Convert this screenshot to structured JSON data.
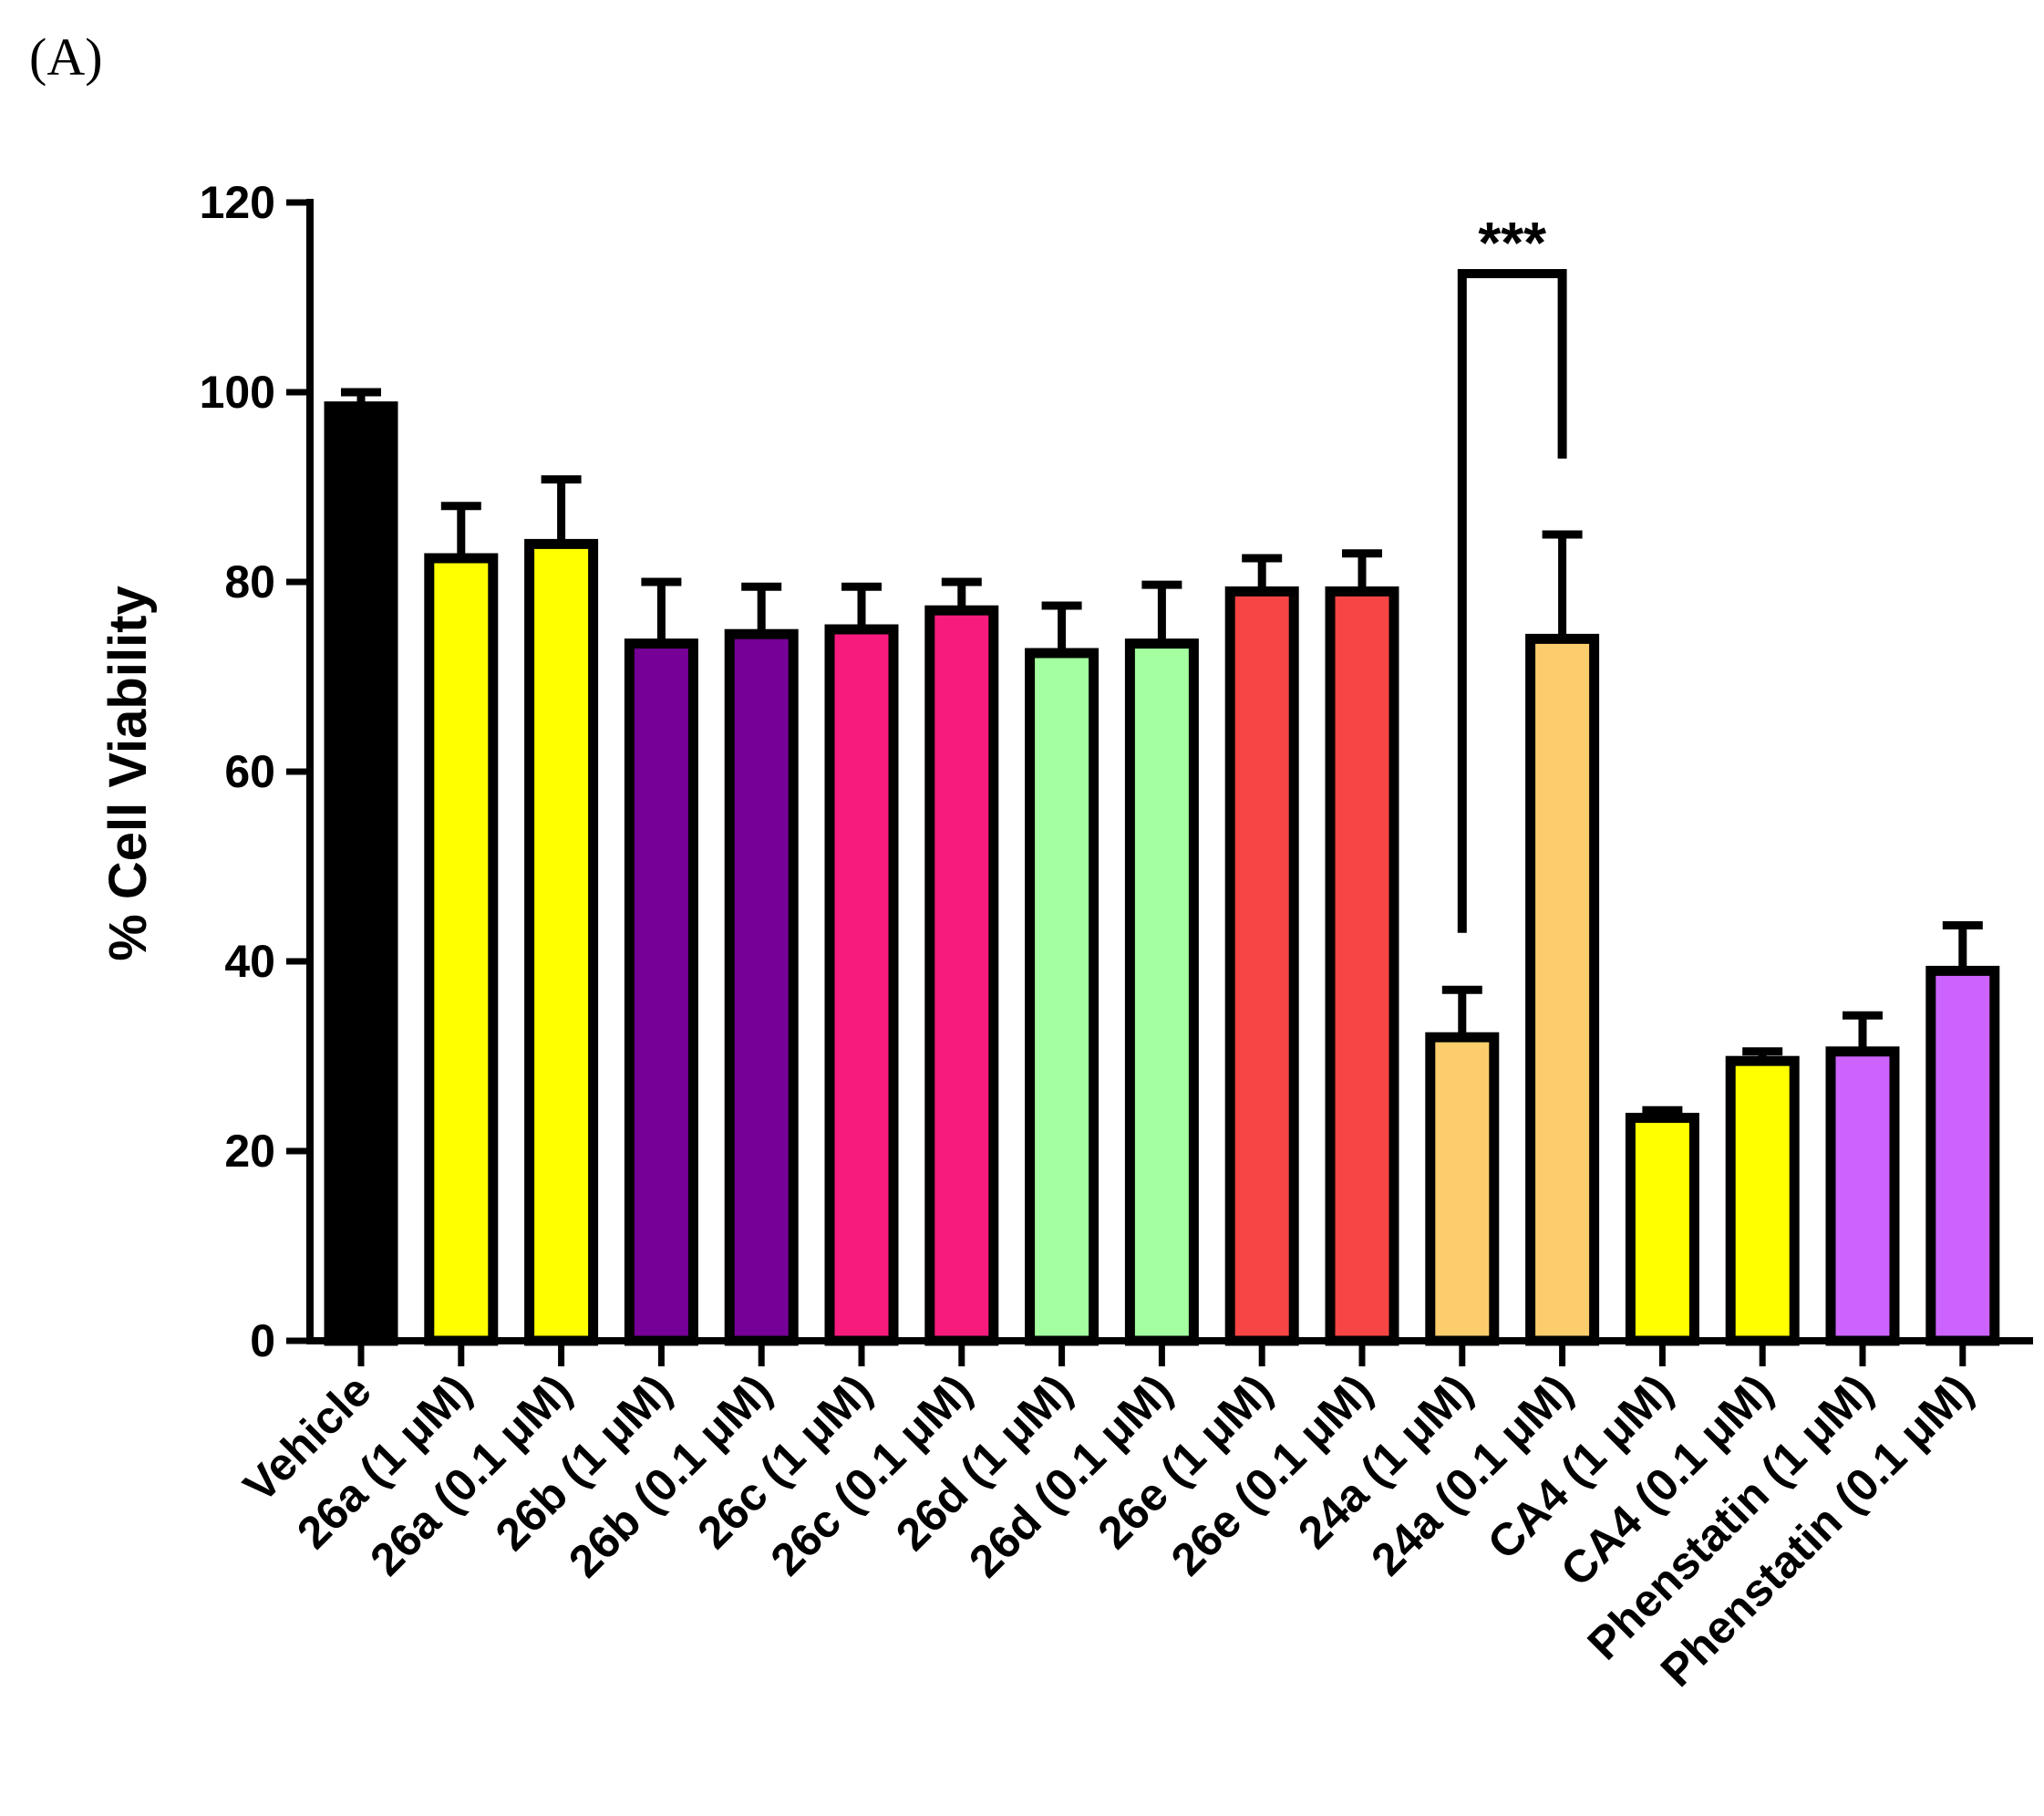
{
  "panel_label": "(A)",
  "chart_data": {
    "type": "bar",
    "title": "",
    "xlabel": "",
    "ylabel": "% Cell Viability",
    "ylim": [
      0,
      120
    ],
    "yticks": [
      0,
      20,
      40,
      60,
      80,
      100,
      120
    ],
    "grid": false,
    "categories": [
      "Vehicle",
      "26a (1 μM)",
      "26a (0.1 μM)",
      "26b (1 μM)",
      "26b (0.1 μM)",
      "26c (1 μM)",
      "26c (0.1 μM)",
      "26d  (1 μM)",
      "26d (0.1 μM)",
      "26e (1 μM)",
      "26e (0.1 μM)",
      "24a (1 μM)",
      "24a (0.1 μM)",
      "CA4 (1 μM)",
      "CA4 (0.1 μM)",
      "Phenstatin (1 μM)",
      "Phenstatin (0.1 μM)"
    ],
    "values": [
      98.5,
      82.5,
      84,
      73.5,
      74.5,
      75,
      77,
      72.5,
      73.5,
      79,
      79,
      32,
      74,
      23.5,
      29.5,
      30.5,
      39
    ],
    "errors": [
      1.5,
      5.5,
      6.8,
      6.5,
      5,
      4.5,
      3,
      5,
      6.2,
      3.5,
      4,
      5,
      11,
      0.8,
      1,
      3.8,
      4.8
    ],
    "colors": [
      "#000000",
      "#ffff00",
      "#ffff00",
      "#760097",
      "#760097",
      "#f71b7e",
      "#f71b7e",
      "#a3ff9f",
      "#a3ff9f",
      "#f74444",
      "#f74444",
      "#fccd6c",
      "#fccd6c",
      "#ffff00",
      "#ffff00",
      "#cc63ff",
      "#cc63ff"
    ],
    "annotations": [
      {
        "type": "significance",
        "from": "24a (1 μM)",
        "to": "24a (0.1 μM)",
        "label": "***",
        "y_bracket": 112.5,
        "y_left_end": 43,
        "y_right_end": 93
      }
    ]
  }
}
